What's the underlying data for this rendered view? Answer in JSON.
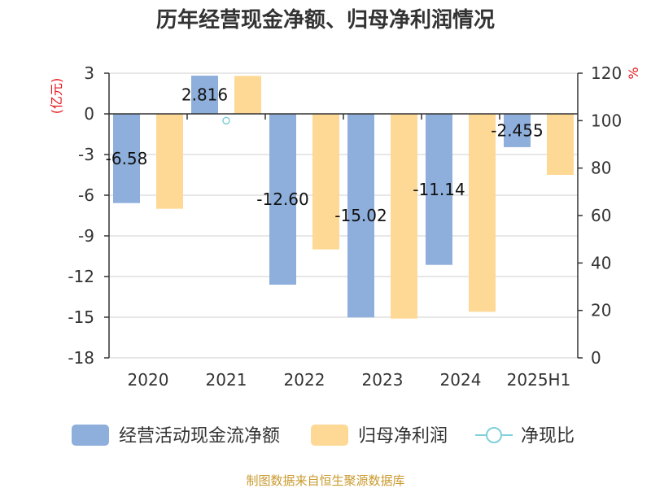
{
  "chart_data": {
    "type": "bar",
    "title": "历年经营现金净额、归母净利润情况",
    "categories": [
      "2020",
      "2021",
      "2022",
      "2023",
      "2024",
      "2025H1"
    ],
    "series": [
      {
        "name": "经营活动现金流净额",
        "axis": "left",
        "color": "#8eaedb",
        "values": [
          -6.58,
          2.816,
          -12.6,
          -15.02,
          -11.14,
          -2.455
        ]
      },
      {
        "name": "归母净利润",
        "axis": "left",
        "color": "#fed895",
        "values": [
          -7.0,
          2.8,
          -10.0,
          -15.1,
          -14.6,
          -4.5
        ]
      },
      {
        "name": "净现比",
        "axis": "right",
        "type": "line",
        "marker": "hollow-circle",
        "color": "#7fd0d8",
        "values": [
          null,
          100,
          null,
          null,
          null,
          null
        ]
      }
    ],
    "data_labels": [
      "-6.58",
      "2.816",
      "-12.60",
      "-15.02",
      "-11.14",
      "-2.455"
    ],
    "y_left": {
      "unit": "(亿元)",
      "ticks": [
        3,
        0,
        -3,
        -6,
        -9,
        -12,
        -15,
        -18
      ],
      "ylim": [
        -18,
        3
      ]
    },
    "y_right": {
      "unit": "%",
      "ticks": [
        120,
        100,
        80,
        60,
        40,
        20,
        0
      ],
      "ylim": [
        0,
        120
      ]
    },
    "grid": true,
    "legend_position": "bottom"
  },
  "source": "制图数据来自恒生聚源数据库"
}
